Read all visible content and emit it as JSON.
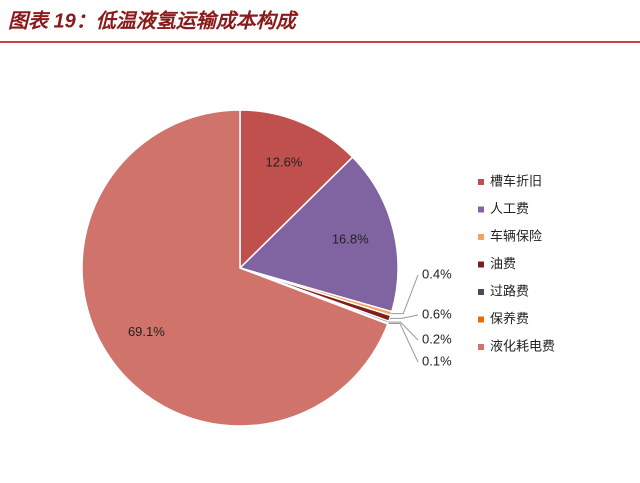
{
  "chart_data": {
    "type": "pie",
    "title": "图表 19：低温液氢运输成本构成",
    "categories": [
      "槽车折旧",
      "人工费",
      "车辆保险",
      "油费",
      "过路费",
      "保养费",
      "液化耗电费"
    ],
    "values": [
      12.6,
      16.8,
      0.4,
      0.6,
      0.2,
      0.1,
      69.1
    ],
    "value_labels": [
      "12.6%",
      "16.8%",
      "0.4%",
      "0.6%",
      "0.2%",
      "0.1%",
      "69.1%"
    ],
    "colors": [
      "#c0504d",
      "#8064a2",
      "#f5a25d",
      "#7f1f1c",
      "#4a4a5a",
      "#e46c0a",
      "#d0736b"
    ],
    "legend": "right"
  }
}
